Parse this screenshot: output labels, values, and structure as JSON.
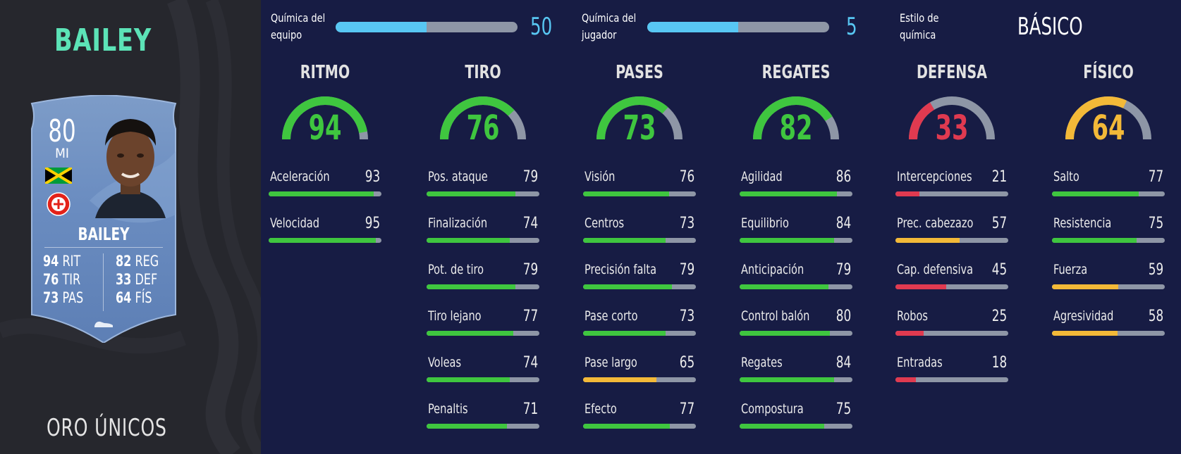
{
  "player": {
    "name": "BAILEY",
    "version": "ORO ÚNICOS",
    "card": {
      "rating": "80",
      "position": "MI",
      "name": "BAILEY",
      "stats": [
        {
          "value": "94",
          "label": "RIT"
        },
        {
          "value": "76",
          "label": "TIR"
        },
        {
          "value": "73",
          "label": "PAS"
        },
        {
          "value": "82",
          "label": "REG"
        },
        {
          "value": "33",
          "label": "DEF"
        },
        {
          "value": "64",
          "label": "FÍS"
        }
      ]
    }
  },
  "chemistry": {
    "team_label_line1": "Química del",
    "team_label_line2": "equipo",
    "team_value": "50",
    "team_max": 100,
    "player_label_line1": "Química del",
    "player_label_line2": "jugador",
    "player_value": "5",
    "player_max": 10,
    "style_label_line1": "Estilo de",
    "style_label_line2": "química",
    "style_value": "BÁSICO"
  },
  "colors": {
    "high": "#3fc63f",
    "medium": "#f3b938",
    "low": "#e03a50",
    "empty": "#8e96a6",
    "chem": "#58c7f3",
    "accent_name": "#5ce3b7"
  },
  "categories": [
    {
      "title": "RITMO",
      "value": 94,
      "attributes": [
        {
          "name": "Aceleración",
          "value": 93
        },
        {
          "name": "Velocidad",
          "value": 95
        }
      ]
    },
    {
      "title": "TIRO",
      "value": 76,
      "attributes": [
        {
          "name": "Pos. ataque",
          "value": 79
        },
        {
          "name": "Finalización",
          "value": 74
        },
        {
          "name": "Pot. de tiro",
          "value": 79
        },
        {
          "name": "Tiro lejano",
          "value": 77
        },
        {
          "name": "Voleas",
          "value": 74
        },
        {
          "name": "Penaltis",
          "value": 71
        }
      ]
    },
    {
      "title": "PASES",
      "value": 73,
      "attributes": [
        {
          "name": "Visión",
          "value": 76
        },
        {
          "name": "Centros",
          "value": 73
        },
        {
          "name": "Precisión falta",
          "value": 79
        },
        {
          "name": "Pase corto",
          "value": 73
        },
        {
          "name": "Pase largo",
          "value": 65
        },
        {
          "name": "Efecto",
          "value": 77
        }
      ]
    },
    {
      "title": "REGATES",
      "value": 82,
      "attributes": [
        {
          "name": "Agilidad",
          "value": 86
        },
        {
          "name": "Equilibrio",
          "value": 84
        },
        {
          "name": "Anticipación",
          "value": 79
        },
        {
          "name": "Control balón",
          "value": 80
        },
        {
          "name": "Regates",
          "value": 84
        },
        {
          "name": "Compostura",
          "value": 75
        }
      ]
    },
    {
      "title": "DEFENSA",
      "value": 33,
      "attributes": [
        {
          "name": "Intercepciones",
          "value": 21
        },
        {
          "name": "Prec. cabezazo",
          "value": 57
        },
        {
          "name": "Cap. defensiva",
          "value": 45
        },
        {
          "name": "Robos",
          "value": 25
        },
        {
          "name": "Entradas",
          "value": 18
        }
      ]
    },
    {
      "title": "FÍSICO",
      "value": 64,
      "attributes": [
        {
          "name": "Salto",
          "value": 77
        },
        {
          "name": "Resistencia",
          "value": 75
        },
        {
          "name": "Fuerza",
          "value": 59
        },
        {
          "name": "Agresividad",
          "value": 58
        }
      ]
    }
  ]
}
